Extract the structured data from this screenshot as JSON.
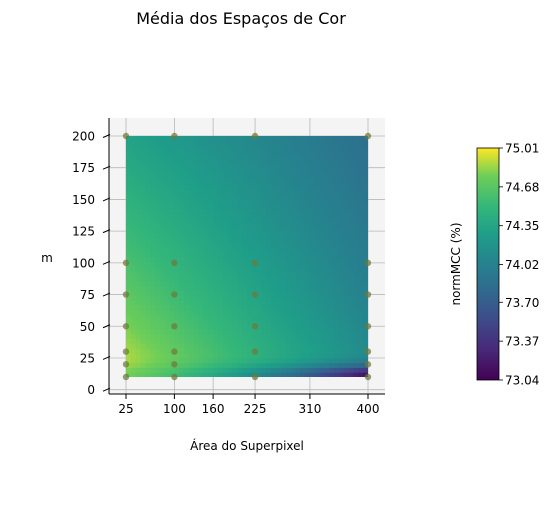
{
  "chart_data": {
    "type": "heatmap",
    "title": "Média dos Espaços de Cor",
    "xlabel": "Área do Superpixel",
    "ylabel": "m",
    "x_ticks": [
      25,
      100,
      160,
      225,
      310,
      400
    ],
    "y_ticks": [
      0,
      25,
      50,
      75,
      100,
      125,
      150,
      175,
      200
    ],
    "xlim": [
      0,
      425
    ],
    "ylim": [
      -5,
      215
    ],
    "grid": true,
    "colormap": "viridis",
    "colorbar": {
      "label": "normMCC (%)",
      "ticks": [
        "75.01",
        "74.68",
        "74.35",
        "74.02",
        "73.70",
        "73.37",
        "73.04"
      ],
      "min": 73.04,
      "max": 75.01
    },
    "samples": {
      "x": [
        25,
        100,
        225,
        400
      ],
      "y": [
        10,
        20,
        30,
        50,
        75,
        100,
        200
      ]
    },
    "surface_extent": {
      "x": [
        25,
        400
      ],
      "y": [
        10,
        200
      ]
    }
  },
  "colors": {
    "panel_background": "#f4f4f4",
    "grid": "#b8b8b8",
    "sample_point": "#6e7a3a"
  }
}
